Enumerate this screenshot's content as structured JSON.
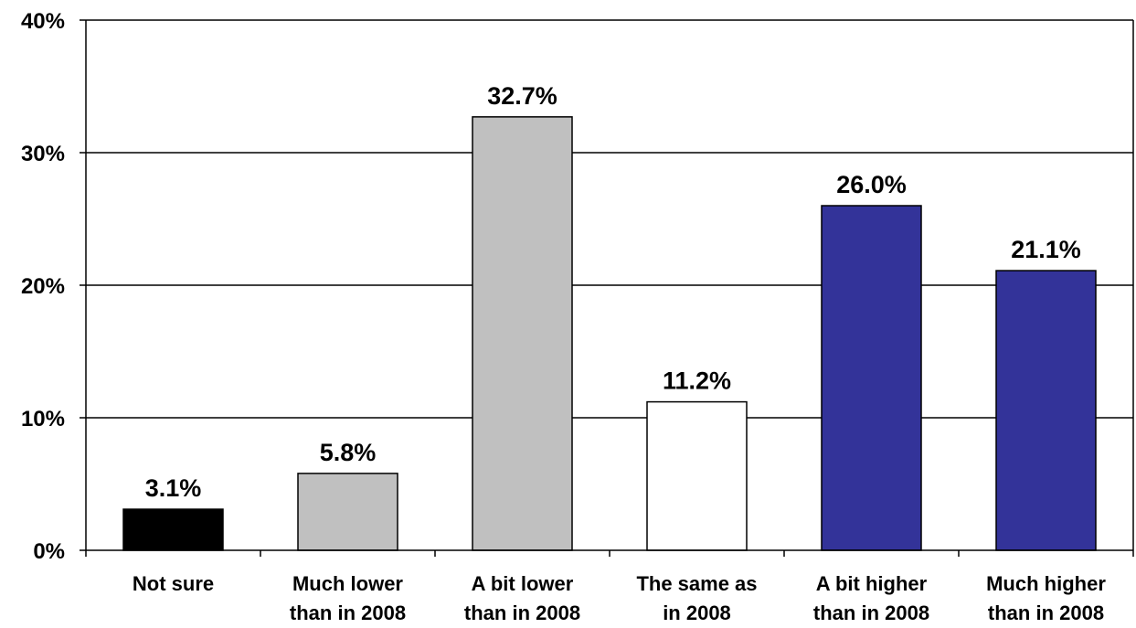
{
  "chart_data": {
    "type": "bar",
    "categories": [
      [
        "Not sure"
      ],
      [
        "Much lower",
        "than in 2008"
      ],
      [
        "A bit lower",
        "than in 2008"
      ],
      [
        "The same as",
        "in 2008"
      ],
      [
        "A bit higher",
        "than in 2008"
      ],
      [
        "Much higher",
        "than in 2008"
      ]
    ],
    "values": [
      3.1,
      5.8,
      32.7,
      11.2,
      26.0,
      21.1
    ],
    "value_labels": [
      "3.1%",
      "5.8%",
      "32.7%",
      "11.2%",
      "26.0%",
      "21.1%"
    ],
    "bar_colors": [
      "#000000",
      "#c0c0c0",
      "#c0c0c0",
      "#ffffff",
      "#333399",
      "#333399"
    ],
    "ylim": [
      0,
      40
    ],
    "yticks": [
      0,
      10,
      20,
      30,
      40
    ],
    "ytick_labels": [
      "0%",
      "10%",
      "20%",
      "30%",
      "40%"
    ],
    "grid": true,
    "legend": "none"
  }
}
